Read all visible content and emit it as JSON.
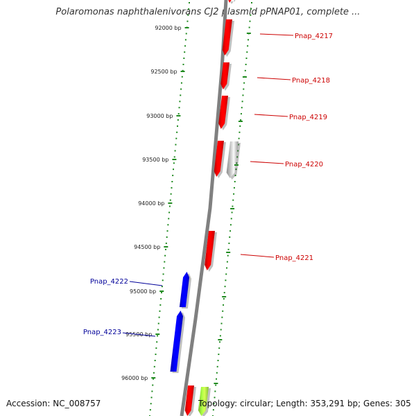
{
  "title": "Polaromonas naphthalenivorans CJ2 plasmid pPNAP01, complete ...",
  "footer": {
    "accession": "Accession: NC_008757",
    "summary": "Topology: circular; Length: 353,291 bp; Genes: 305"
  },
  "colors": {
    "backbone": "#808080",
    "tick_dots": "#1f8a1f",
    "forward_gene": "#ff0000",
    "reverse_gene": "#0000ff",
    "other_gene": "#c8c8c8",
    "green_gene": "#aaff44",
    "forward_label": "#cc0000",
    "reverse_label": "#000099"
  },
  "ticks": [
    {
      "label": "92000 bp"
    },
    {
      "label": "92500 bp"
    },
    {
      "label": "93000 bp"
    },
    {
      "label": "93500 bp"
    },
    {
      "label": "94000 bp"
    },
    {
      "label": "94500 bp"
    },
    {
      "label": "95000 bp"
    },
    {
      "label": "95500 bp"
    },
    {
      "label": "96000 bp"
    }
  ],
  "genes": [
    {
      "name": "Pnap_4217",
      "strand": "forward"
    },
    {
      "name": "Pnap_4218",
      "strand": "forward"
    },
    {
      "name": "Pnap_4219",
      "strand": "forward"
    },
    {
      "name": "Pnap_4220",
      "strand": "forward"
    },
    {
      "name": "Pnap_4221",
      "strand": "forward"
    },
    {
      "name": "Pnap_4222",
      "strand": "reverse"
    },
    {
      "name": "Pnap_4223",
      "strand": "reverse"
    }
  ]
}
